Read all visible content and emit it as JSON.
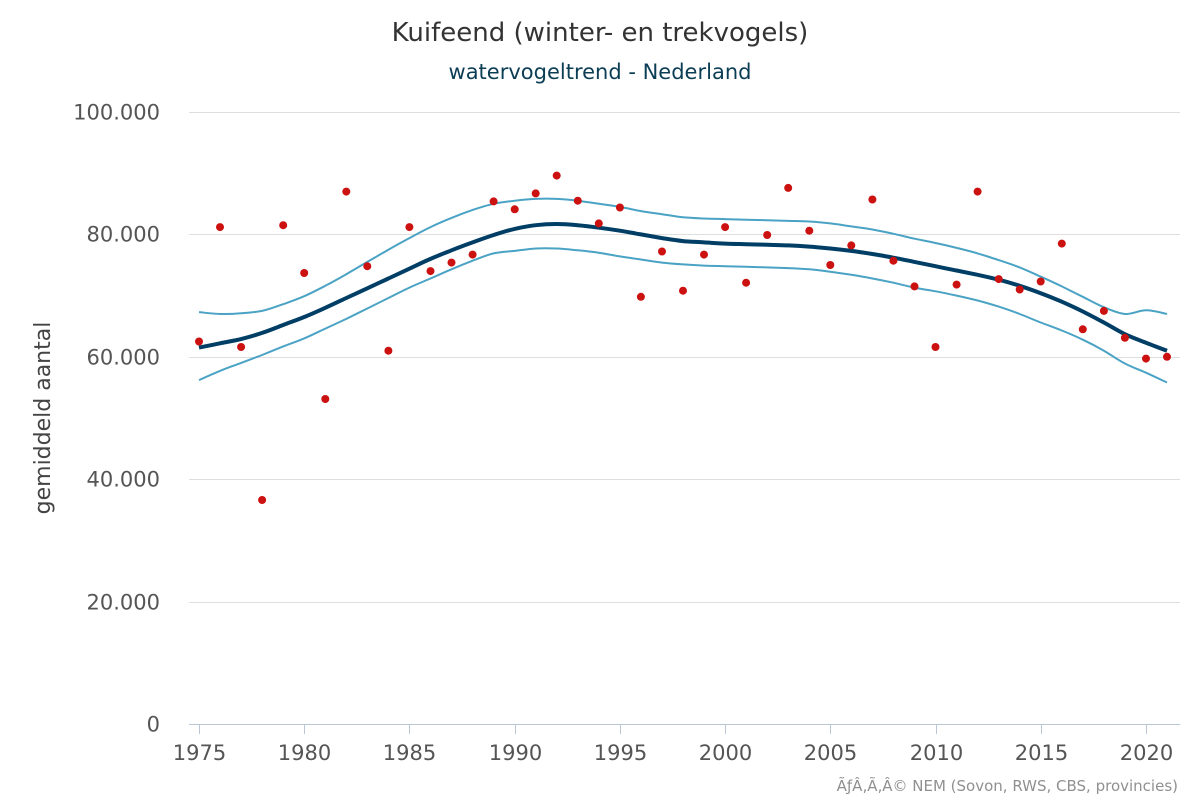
{
  "chart_data": {
    "type": "line",
    "title": "Kuifeend (winter- en trekvogels)",
    "subtitle": "watervogeltrend - Nederland",
    "ylabel": "gemiddeld aantal",
    "xlabel": "",
    "xlim": [
      1975,
      2021
    ],
    "ylim": [
      0,
      100000
    ],
    "yticks": [
      0,
      20000,
      40000,
      60000,
      80000,
      100000
    ],
    "ytick_labels": [
      "0",
      "20.000",
      "40.000",
      "60.000",
      "80.000",
      "100.000"
    ],
    "xticks": [
      1975,
      1980,
      1985,
      1990,
      1995,
      2000,
      2005,
      2010,
      2015,
      2020
    ],
    "xtick_labels": [
      "1975",
      "1980",
      "1985",
      "1990",
      "1995",
      "2000",
      "2005",
      "2010",
      "2015",
      "2020"
    ],
    "grid": true,
    "colors": {
      "trend": "#003e66",
      "bounds": "#4aa3c4",
      "points": "#cc1111",
      "grid": "#dedede"
    },
    "series": [
      {
        "type": "line",
        "x": [
          1975,
          1976,
          1977,
          1978,
          1979,
          1980,
          1981,
          1982,
          1983,
          1984,
          1985,
          1986,
          1987,
          1988,
          1989,
          1990,
          1991,
          1992,
          1993,
          1994,
          1995,
          1996,
          1997,
          1998,
          1999,
          2000,
          2001,
          2002,
          2003,
          2004,
          2005,
          2006,
          2007,
          2008,
          2009,
          2010,
          2011,
          2012,
          2013,
          2014,
          2015,
          2016,
          2017,
          2018,
          2019,
          2020,
          2021
        ],
        "values": [
          61500,
          62200,
          62900,
          63900,
          65200,
          66500,
          68000,
          69600,
          71200,
          72800,
          74400,
          76000,
          77400,
          78700,
          79900,
          80900,
          81500,
          81700,
          81500,
          81100,
          80600,
          80000,
          79400,
          78900,
          78700,
          78500,
          78400,
          78300,
          78200,
          78000,
          77700,
          77300,
          76800,
          76200,
          75500,
          74800,
          74100,
          73400,
          72600,
          71600,
          70400,
          69000,
          67400,
          65600,
          63700,
          62300,
          61000
        ]
      },
      {
        "type": "line",
        "x": [
          1975,
          1976,
          1977,
          1978,
          1979,
          1980,
          1981,
          1982,
          1983,
          1984,
          1985,
          1986,
          1987,
          1988,
          1989,
          1990,
          1991,
          1992,
          1993,
          1994,
          1995,
          1996,
          1997,
          1998,
          1999,
          2000,
          2001,
          2002,
          2003,
          2004,
          2005,
          2006,
          2007,
          2008,
          2009,
          2010,
          2011,
          2012,
          2013,
          2014,
          2015,
          2016,
          2017,
          2018,
          2019,
          2020,
          2021
        ],
        "values": [
          67300,
          67000,
          67100,
          67500,
          68600,
          69900,
          71600,
          73500,
          75500,
          77500,
          79400,
          81200,
          82700,
          84000,
          85000,
          85500,
          85800,
          85800,
          85500,
          85000,
          84500,
          83800,
          83300,
          82800,
          82600,
          82500,
          82400,
          82300,
          82200,
          82100,
          81800,
          81300,
          80800,
          80100,
          79300,
          78600,
          77800,
          76900,
          75800,
          74600,
          73100,
          71500,
          69800,
          68100,
          67000,
          67600,
          67000
        ]
      },
      {
        "type": "line",
        "x": [
          1975,
          1976,
          1977,
          1978,
          1979,
          1980,
          1981,
          1982,
          1983,
          1984,
          1985,
          1986,
          1987,
          1988,
          1989,
          1990,
          1991,
          1992,
          1993,
          1994,
          1995,
          1996,
          1997,
          1998,
          1999,
          2000,
          2001,
          2002,
          2003,
          2004,
          2005,
          2006,
          2007,
          2008,
          2009,
          2010,
          2011,
          2012,
          2013,
          2014,
          2015,
          2016,
          2017,
          2018,
          2019,
          2020,
          2021
        ],
        "values": [
          56200,
          57700,
          59000,
          60300,
          61700,
          63000,
          64600,
          66200,
          67900,
          69600,
          71300,
          72800,
          74300,
          75700,
          76900,
          77300,
          77700,
          77700,
          77400,
          77000,
          76400,
          75900,
          75400,
          75100,
          74900,
          74800,
          74700,
          74600,
          74500,
          74300,
          73900,
          73400,
          72800,
          72100,
          71300,
          70700,
          70000,
          69200,
          68200,
          67000,
          65600,
          64300,
          62800,
          61000,
          58900,
          57400,
          55800
        ]
      },
      {
        "type": "scatter",
        "x": [
          1975,
          1976,
          1977,
          1978,
          1979,
          1980,
          1981,
          1982,
          1983,
          1984,
          1985,
          1986,
          1987,
          1988,
          1989,
          1990,
          1991,
          1992,
          1993,
          1994,
          1995,
          1996,
          1997,
          1998,
          1999,
          2000,
          2001,
          2002,
          2003,
          2004,
          2005,
          2006,
          2007,
          2008,
          2009,
          2010,
          2011,
          2012,
          2013,
          2014,
          2015,
          2016,
          2017,
          2018,
          2019,
          2020,
          2021
        ],
        "values": [
          62500,
          81200,
          61600,
          36600,
          81500,
          73700,
          53100,
          87000,
          74800,
          61000,
          81200,
          74000,
          75400,
          76700,
          85400,
          84100,
          86700,
          89600,
          85500,
          81800,
          84400,
          69800,
          77200,
          70800,
          76700,
          81200,
          72100,
          79900,
          87600,
          80600,
          75000,
          78200,
          85700,
          75700,
          71500,
          61600,
          71800,
          87000,
          72700,
          71000,
          72300,
          78500,
          64500,
          67500,
          63100,
          59700,
          60000
        ]
      }
    ]
  },
  "credits": "ÃƒÂ‚Ã‚Â© NEM (Sovon, RWS, CBS, provincies)"
}
